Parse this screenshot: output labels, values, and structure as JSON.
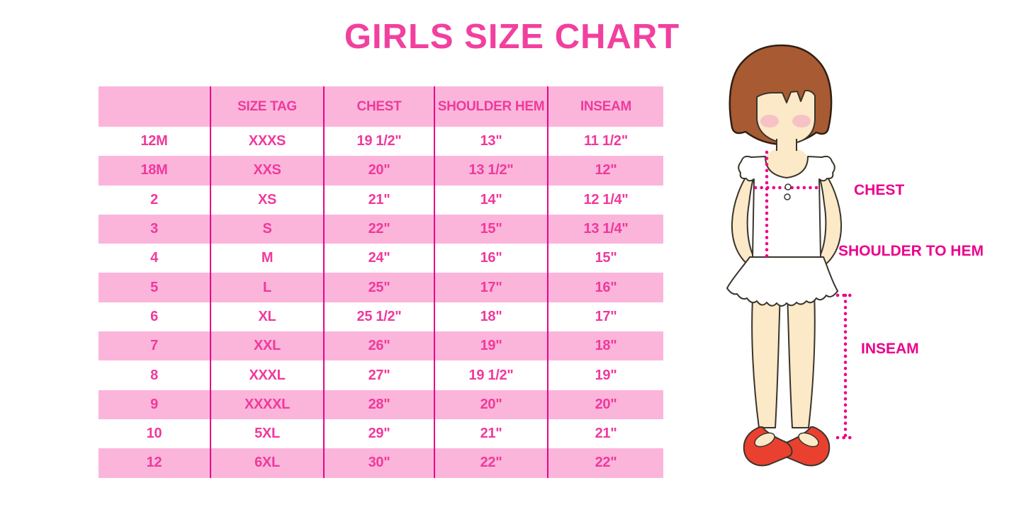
{
  "title": "GIRLS SIZE CHART",
  "chart_data": {
    "type": "table",
    "title": "GIRLS SIZE CHART",
    "columns": [
      "",
      "SIZE TAG",
      "CHEST",
      "SHOULDER HEM",
      "INSEAM"
    ],
    "rows": [
      [
        "12M",
        "XXXS",
        "19 1/2\"",
        "13\"",
        "11 1/2\""
      ],
      [
        "18M",
        "XXS",
        "20\"",
        "13 1/2\"",
        "12\""
      ],
      [
        "2",
        "XS",
        "21\"",
        "14\"",
        "12 1/4\""
      ],
      [
        "3",
        "S",
        "22\"",
        "15\"",
        "13 1/4\""
      ],
      [
        "4",
        "M",
        "24\"",
        "16\"",
        "15\""
      ],
      [
        "5",
        "L",
        "25\"",
        "17\"",
        "16\""
      ],
      [
        "6",
        "XL",
        "25 1/2\"",
        "18\"",
        "17\""
      ],
      [
        "7",
        "XXL",
        "26\"",
        "19\"",
        "18\""
      ],
      [
        "8",
        "XXXL",
        "27\"",
        "19 1/2\"",
        "19\""
      ],
      [
        "9",
        "XXXXL",
        "28\"",
        "20\"",
        "20\""
      ],
      [
        "10",
        "5XL",
        "29\"",
        "21\"",
        "21\""
      ],
      [
        "12",
        "6XL",
        "30\"",
        "22\"",
        "22\""
      ]
    ],
    "row_stripe_pattern": [
      "white",
      "pink"
    ],
    "grid": "vertical-column-lines-only"
  },
  "figure": {
    "description": "cartoon girl with bob haircut, white sleeveless ruffle top and skirt, red mary-jane shoes",
    "labels": {
      "chest": "CHEST",
      "shoulder_to_hem": "SHOULDER TO HEM",
      "inseam": "INSEAM"
    }
  },
  "colors": {
    "accent_pink": "#F2409F",
    "row_pink": "#FBB5DB",
    "grid_line": "#E6058A",
    "text_pink": "#F0399C",
    "label_magenta": "#EC008C",
    "hair_brown": "#A85A33",
    "skin": "#FBE9C7",
    "cheek": "#F5B8C4",
    "shoe_red": "#EA4030"
  }
}
